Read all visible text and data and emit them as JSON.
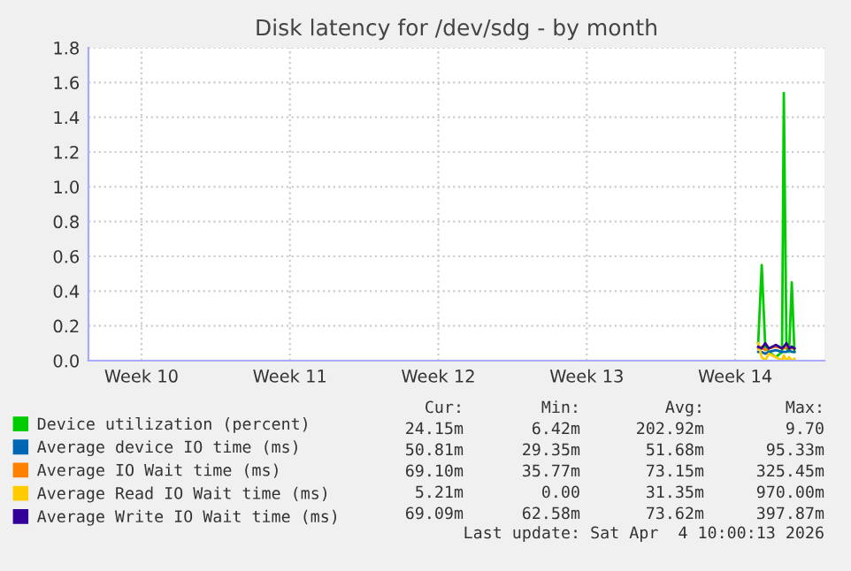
{
  "chart_data": {
    "type": "line",
    "title": "Disk latency for /dev/sdg - by month",
    "xlim": [
      "2026-03-02T00:00",
      "2026-04-05T17:00"
    ],
    "xticks": [
      {
        "value": "2026-03-04T12:00",
        "label": "Week 10"
      },
      {
        "value": "2026-03-11T12:00",
        "label": "Week 11"
      },
      {
        "value": "2026-03-18T12:00",
        "label": "Week 12"
      },
      {
        "value": "2026-03-25T12:00",
        "label": "Week 13"
      },
      {
        "value": "2026-04-01T12:00",
        "label": "Week 14"
      }
    ],
    "ylim": [
      0,
      1.8
    ],
    "yticks": [
      {
        "value": 0,
        "label": "0.0"
      },
      {
        "value": 0.2,
        "label": "0.2"
      },
      {
        "value": 0.4,
        "label": "0.4"
      },
      {
        "value": 0.6,
        "label": "0.6"
      },
      {
        "value": 0.8,
        "label": "0.8"
      },
      {
        "value": 1.0,
        "label": "1.0"
      },
      {
        "value": 1.2,
        "label": "1.2"
      },
      {
        "value": 1.4,
        "label": "1.4"
      },
      {
        "value": 1.6,
        "label": "1.6"
      },
      {
        "value": 1.8,
        "label": "1.8"
      }
    ],
    "grid": true,
    "legend": "bottom",
    "x": [
      "2026-04-02T14:00",
      "2026-04-02T18:00",
      "2026-04-02T22:00",
      "2026-04-03T02:00",
      "2026-04-03T10:00",
      "2026-04-03T17:00",
      "2026-04-03T19:00",
      "2026-04-03T22:00",
      "2026-04-04T01:00",
      "2026-04-04T04:00",
      "2026-04-04T07:00"
    ],
    "series": [
      {
        "name": "Device utilization (percent)",
        "color": "#00cc00",
        "values": [
          0.1,
          0.55,
          0.08,
          0.05,
          0.02,
          0.05,
          1.54,
          0.07,
          0.05,
          0.45,
          0.05
        ]
      },
      {
        "name": "Average device IO time (ms)",
        "color": "#0066b3",
        "values": [
          0.05,
          0.05,
          0.04,
          0.05,
          0.06,
          0.05,
          0.05,
          0.05,
          0.06,
          0.05,
          0.05
        ]
      },
      {
        "name": "Average IO Wait time (ms)",
        "color": "#ff8000",
        "values": [
          0.07,
          0.08,
          0.06,
          0.07,
          0.08,
          0.07,
          0.07,
          0.08,
          0.07,
          0.07,
          0.07
        ]
      },
      {
        "name": "Average Read IO Wait time (ms)",
        "color": "#ffcc00",
        "values": [
          0.1,
          0.02,
          0.0,
          0.04,
          0.02,
          0.0,
          0.03,
          0.0,
          0.02,
          0.0,
          0.01
        ]
      },
      {
        "name": "Average Write IO Wait time (ms)",
        "color": "#330099",
        "values": [
          0.08,
          0.07,
          0.1,
          0.07,
          0.09,
          0.07,
          0.08,
          0.1,
          0.07,
          0.08,
          0.07
        ]
      }
    ],
    "annotations": [
      "Cur:",
      "Min:",
      "Avg:",
      "Max:",
      "24.15m",
      "6.42m",
      "202.92m",
      "9.70",
      "50.81m",
      "29.35m",
      "51.68m",
      "95.33m",
      "69.10m",
      "35.77m",
      "73.15m",
      "325.45m",
      "5.21m",
      "0.00",
      "31.35m",
      "970.00m",
      "69.09m",
      "62.58m",
      "73.62m",
      "397.87m",
      "Last update: Sat Apr  4 10:00:13 2026"
    ]
  }
}
